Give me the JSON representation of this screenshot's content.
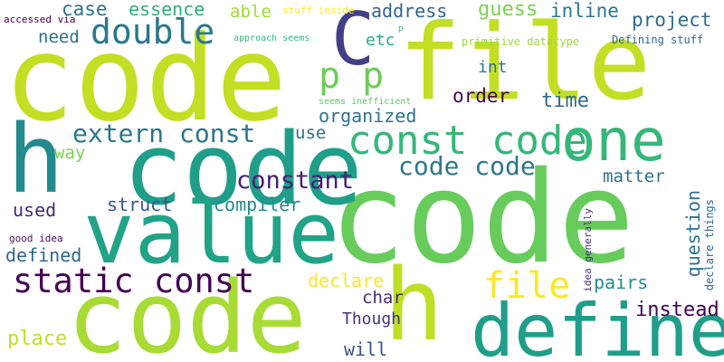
{
  "words": [
    {
      "text": "code",
      "color": "#c2df23"
    },
    {
      "text": "file",
      "color": "#c2df23"
    },
    {
      "text": "code",
      "color": "#67cc5c"
    },
    {
      "text": "code",
      "color": "#1f9e89"
    },
    {
      "text": "value",
      "color": "#20a386"
    },
    {
      "text": "code",
      "color": "#a8db34"
    },
    {
      "text": "h",
      "color": "#238a8d"
    },
    {
      "text": "h",
      "color": "#bddf26"
    },
    {
      "text": "define",
      "color": "#1f9e89"
    },
    {
      "text": "one",
      "color": "#35b779"
    },
    {
      "text": "C",
      "color": "#433e85"
    },
    {
      "text": "p p",
      "color": "#6ccd5a"
    },
    {
      "text": "double",
      "color": "#2a788e"
    },
    {
      "text": "const code",
      "color": "#35b779"
    },
    {
      "text": "static const",
      "color": "#440154"
    },
    {
      "text": "extern const",
      "color": "#2a768e"
    },
    {
      "text": "code code",
      "color": "#2a788e"
    },
    {
      "text": "file",
      "color": "#fde725"
    },
    {
      "text": "constant",
      "color": "#481f70"
    },
    {
      "text": "address",
      "color": "#32648e"
    },
    {
      "text": "guess",
      "color": "#7ad151"
    },
    {
      "text": "inline",
      "color": "#2a768e"
    },
    {
      "text": "project",
      "color": "#31688e"
    },
    {
      "text": "case",
      "color": "#2c728e"
    },
    {
      "text": "essence",
      "color": "#2ab07f"
    },
    {
      "text": "able",
      "color": "#9fda3a"
    },
    {
      "text": "need",
      "color": "#2c728e"
    },
    {
      "text": "etc",
      "color": "#26ad81"
    },
    {
      "text": "int",
      "color": "#2d708e"
    },
    {
      "text": "order",
      "color": "#440154"
    },
    {
      "text": "time",
      "color": "#31688e"
    },
    {
      "text": "organized",
      "color": "#2c728e"
    },
    {
      "text": "use",
      "color": "#2c728e"
    },
    {
      "text": "way",
      "color": "#7ad151"
    },
    {
      "text": "matter",
      "color": "#2c728e"
    },
    {
      "text": "struct",
      "color": "#39568c"
    },
    {
      "text": "compiler",
      "color": "#228c8d"
    },
    {
      "text": "used",
      "color": "#482878"
    },
    {
      "text": "defined",
      "color": "#32648e"
    },
    {
      "text": "question",
      "color": "#2d708e"
    },
    {
      "text": "declare",
      "color": "#fde725"
    },
    {
      "text": "pairs",
      "color": "#228c8d"
    },
    {
      "text": "char",
      "color": "#472d7b"
    },
    {
      "text": "Though",
      "color": "#46327e"
    },
    {
      "text": "instead",
      "color": "#440154"
    },
    {
      "text": "place",
      "color": "#bddf26"
    },
    {
      "text": "will",
      "color": "#3b528b"
    },
    {
      "text": "accessed via",
      "color": "#440154"
    },
    {
      "text": "stuff inside",
      "color": "#fde725"
    },
    {
      "text": "approach seems",
      "color": "#35b779"
    },
    {
      "text": "p",
      "color": "#35b779"
    },
    {
      "text": "primitive datatype",
      "color": "#a0da39"
    },
    {
      "text": "Defining stuff",
      "color": "#31688e"
    },
    {
      "text": "seems inefficient",
      "color": "#5ec962"
    },
    {
      "text": "good idea",
      "color": "#471063"
    },
    {
      "text": "idea generally",
      "color": "#472d7b"
    },
    {
      "text": "declare things",
      "color": "#31688e"
    }
  ]
}
